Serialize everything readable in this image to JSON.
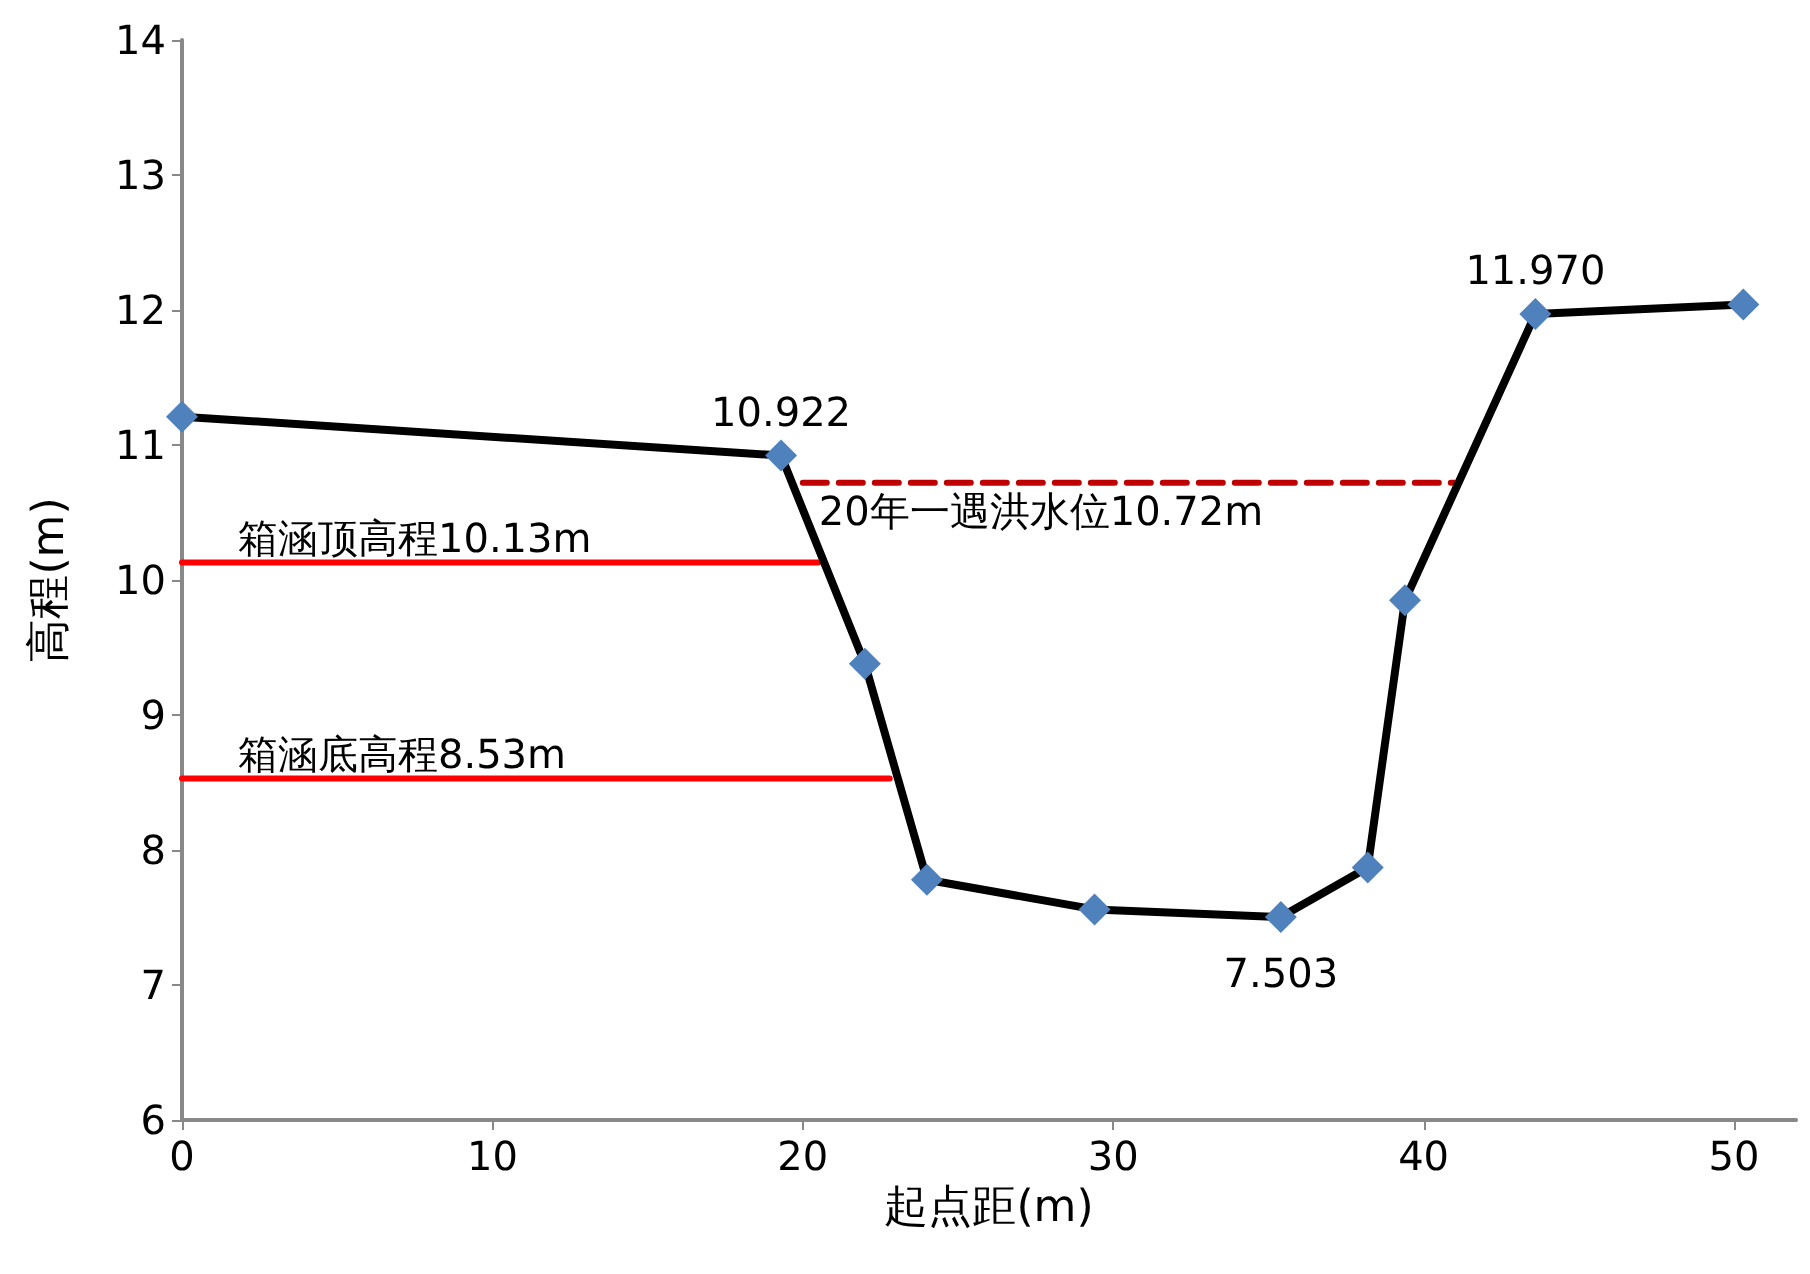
{
  "chart_data": {
    "type": "line",
    "xlabel": "起点距(m)",
    "ylabel": "高程(m)",
    "xlim": [
      0,
      52
    ],
    "xticks": [
      0,
      10,
      20,
      30,
      40,
      50
    ],
    "ylim": [
      6,
      14
    ],
    "yticks": [
      6,
      7,
      8,
      9,
      10,
      11,
      12,
      13,
      14
    ],
    "grid": false,
    "legend": false,
    "series": [
      {
        "color": "#000000",
        "marker": "diamond",
        "colors": [
          "#4f81bd",
          "#4f81bd",
          "#4f81bd",
          "#4f81bd",
          "#4f81bd",
          "#4f81bd",
          "#4f81bd",
          "#4f81bd",
          "#4f81bd",
          "#4f81bd"
        ],
        "x": [
          0,
          19.3,
          22.0,
          24.0,
          29.4,
          35.4,
          38.2,
          39.4,
          43.6,
          50.3
        ],
        "values": [
          11.21,
          10.922,
          9.38,
          7.78,
          7.56,
          7.503,
          7.87,
          9.85,
          11.97,
          12.04
        ],
        "value_labels": [
          null,
          "10.922",
          null,
          null,
          null,
          "7.503",
          null,
          null,
          "11.970",
          null
        ]
      },
      {
        "name": "箱涵顶高程10.13m",
        "color": "#ff0000",
        "marker": "none",
        "line_style": "solid",
        "x": [
          0,
          20.5
        ],
        "values": [
          10.13,
          10.13
        ]
      },
      {
        "name": "箱涵底高程8.53m",
        "color": "#ff0000",
        "marker": "none",
        "line_style": "solid",
        "x": [
          0,
          22.8
        ],
        "values": [
          8.53,
          8.53
        ]
      },
      {
        "name": "20年一遇洪水位10.72m",
        "color": "#c00000",
        "marker": "none",
        "line_style": "dashed",
        "x": [
          20.0,
          41.0
        ],
        "values": [
          10.72,
          10.72
        ]
      }
    ]
  }
}
